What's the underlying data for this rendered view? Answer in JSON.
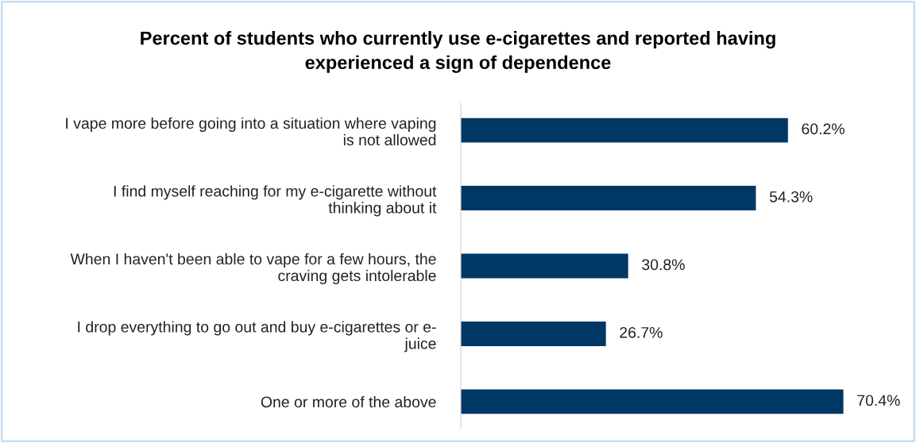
{
  "chart_data": {
    "type": "bar",
    "orientation": "horizontal",
    "title": "Percent of students who currently use e-cigarettes and reported having\nexperienced a sign of dependence",
    "categories": [
      "I vape more before going into a situation where vaping\nis not allowed",
      "I find myself reaching for my e-cigarette without\nthinking about it",
      "When I haven't been able to vape for a few hours, the\ncraving gets intolerable",
      "I drop everything to go out and buy e-cigarettes or e-\njuice",
      "One or more of the above"
    ],
    "values": [
      60.2,
      54.3,
      30.8,
      26.7,
      70.4
    ],
    "value_labels": [
      "60.2%",
      "54.3%",
      "30.8%",
      "26.7%",
      "70.4%"
    ],
    "color": "#003865",
    "grid": false,
    "legend": false
  }
}
